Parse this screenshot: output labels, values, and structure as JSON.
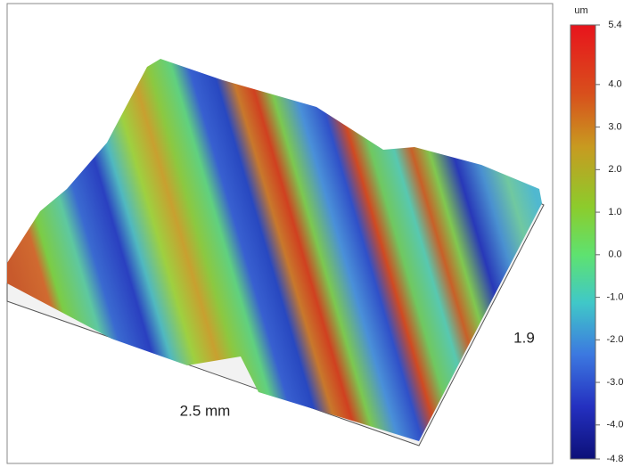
{
  "chart_data": {
    "type": "surface3d",
    "x_label": "2.5 mm",
    "y_label": "1.9",
    "colorbar": {
      "unit": "um",
      "lim": [
        -4.8,
        5.4
      ],
      "ticks": [
        5.4,
        {
          "value": 4,
          "label": "4.0"
        },
        {
          "value": 3,
          "label": "3.0"
        },
        {
          "value": 2,
          "label": "2.0"
        },
        {
          "value": 1,
          "label": "1.0"
        },
        {
          "value": 0,
          "label": "0.0"
        },
        {
          "value": -1,
          "label": "-1.0"
        },
        {
          "value": -2,
          "label": "-2.0"
        },
        {
          "value": -3,
          "label": "-3.0"
        },
        {
          "value": -4,
          "label": "-4.0"
        },
        -4.8
      ]
    }
  }
}
